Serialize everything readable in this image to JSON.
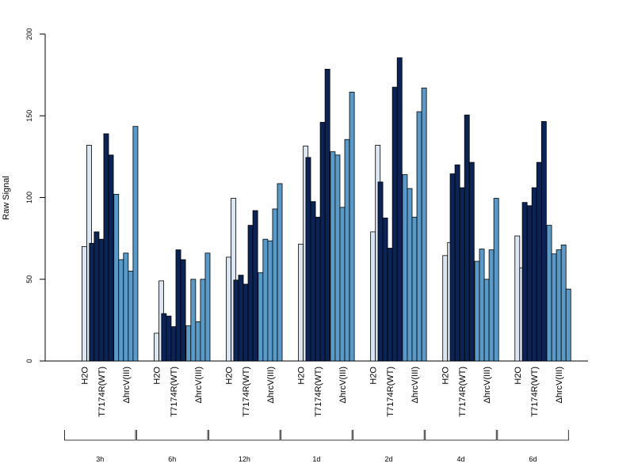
{
  "chart_data": {
    "type": "bar",
    "ylabel": "Raw Signal",
    "ylim": [
      0,
      200
    ],
    "yticks": [
      "0",
      "50",
      "100",
      "150",
      "200"
    ],
    "colors": {
      "H2O": "#dce6f2",
      "T7174R(WT)": "#0c2356",
      "ΔhrcV(III)": "#5a9ac8"
    },
    "groups": [
      {
        "time": "3h",
        "conditions": [
          {
            "label": "H2O",
            "values": [
              0,
              70,
              132
            ]
          },
          {
            "label": "T7174R(WT)",
            "values": [
              72,
              79,
              74.5,
              139,
              126
            ]
          },
          {
            "label": "ΔhrcV(III)",
            "values": [
              102,
              62,
              66,
              55,
              143.5
            ]
          }
        ]
      },
      {
        "time": "6h",
        "conditions": [
          {
            "label": "H2O",
            "values": [
              0,
              17,
              49
            ]
          },
          {
            "label": "T7174R(WT)",
            "values": [
              29,
              27.5,
              21,
              68,
              62
            ]
          },
          {
            "label": "ΔhrcV(III)",
            "values": [
              21.5,
              50,
              24,
              50,
              66
            ]
          }
        ]
      },
      {
        "time": "12h",
        "conditions": [
          {
            "label": "H2O",
            "values": [
              0,
              63.5,
              99.5
            ]
          },
          {
            "label": "T7174R(WT)",
            "values": [
              49.5,
              52.5,
              47,
              83,
              92
            ]
          },
          {
            "label": "ΔhrcV(III)",
            "values": [
              54,
              74.5,
              73.5,
              93,
              108.5
            ]
          }
        ]
      },
      {
        "time": "1d",
        "conditions": [
          {
            "label": "H2O",
            "values": [
              0,
              71.5,
              131.5
            ]
          },
          {
            "label": "T7174R(WT)",
            "values": [
              124.5,
              97.5,
              88,
              146,
              178.5
            ]
          },
          {
            "label": "ΔhrcV(III)",
            "values": [
              128,
              126,
              94,
              135.5,
              164.5
            ]
          }
        ]
      },
      {
        "time": "2d",
        "conditions": [
          {
            "label": "H2O",
            "values": [
              0,
              79,
              132
            ]
          },
          {
            "label": "T7174R(WT)",
            "values": [
              109.5,
              87.5,
              69,
              167.5,
              185.5
            ]
          },
          {
            "label": "ΔhrcV(III)",
            "values": [
              114,
              105.5,
              88,
              152.5,
              167
            ]
          }
        ]
      },
      {
        "time": "4d",
        "conditions": [
          {
            "label": "H2O",
            "values": [
              0,
              64.5,
              72.5
            ]
          },
          {
            "label": "T7174R(WT)",
            "values": [
              114.5,
              120,
              106,
              150.5,
              121.5
            ]
          },
          {
            "label": "ΔhrcV(III)",
            "values": [
              61,
              68.5,
              50,
              68,
              99.5
            ]
          }
        ]
      },
      {
        "time": "6d",
        "conditions": [
          {
            "label": "H2O",
            "values": [
              0,
              76.5,
              57
            ]
          },
          {
            "label": "T7174R(WT)",
            "values": [
              97,
              95,
              106,
              121.5,
              146.5
            ]
          },
          {
            "label": "ΔhrcV(III)",
            "values": [
              83,
              65.5,
              68,
              71,
              44
            ]
          }
        ]
      }
    ]
  }
}
